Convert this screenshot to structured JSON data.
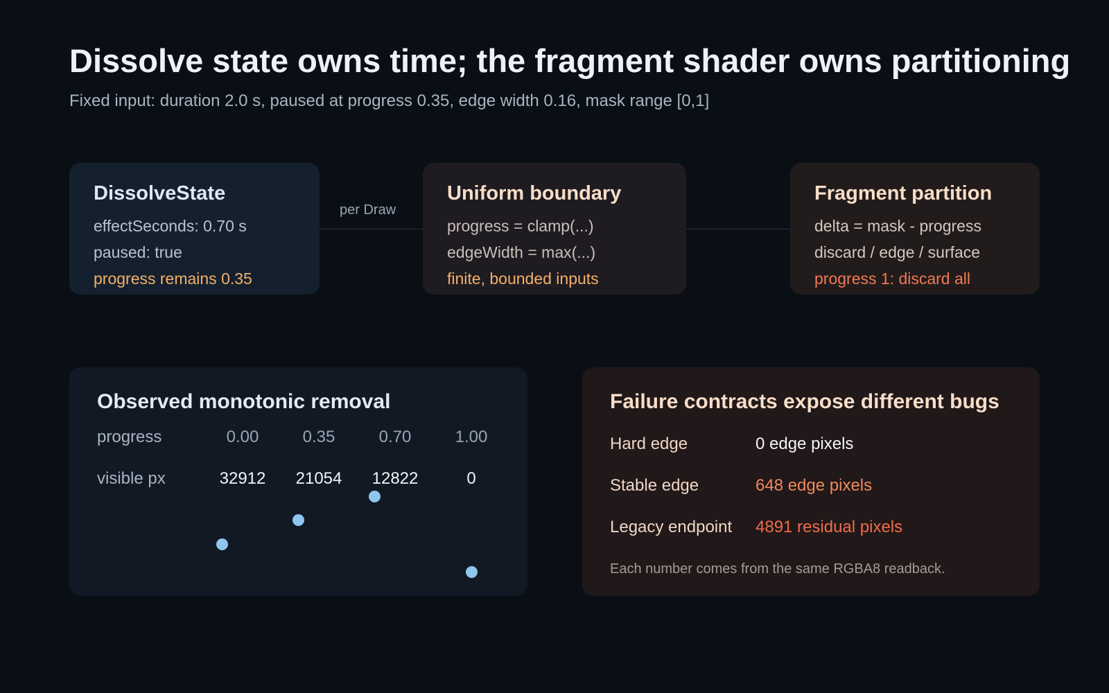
{
  "header": {
    "title": "Dissolve state owns time; the fragment shader owns partitioning",
    "subtitle": "Fixed input: duration 2.0 s, paused at progress 0.35, edge width 0.16, mask range [0,1]"
  },
  "stages": [
    {
      "title": "DissolveState",
      "lines": [
        "effectSeconds: 0.70 s",
        "paused: true",
        "progress remains 0.35"
      ]
    },
    {
      "title": "Uniform boundary",
      "lines": [
        "progress = clamp(...)",
        "edgeWidth = max(...)",
        "finite, bounded inputs"
      ]
    },
    {
      "title": "Fragment partition",
      "lines": [
        "delta = mask - progress",
        "discard / edge / surface",
        "progress 1: discard all"
      ]
    }
  ],
  "connector": {
    "label": "per Draw"
  },
  "observed": {
    "title": "Observed monotonic removal",
    "table": {
      "rows": [
        [
          "progress",
          "0.00",
          "0.35",
          "0.70",
          "1.00"
        ],
        [
          "visible px",
          "32912",
          "21054",
          "12822",
          "0"
        ]
      ]
    }
  },
  "failures": {
    "title": "Failure contracts expose different bugs",
    "rows": [
      [
        "Hard edge",
        "0 edge pixels"
      ],
      [
        "Stable edge",
        "648 edge pixels"
      ],
      [
        "Legacy endpoint",
        "4891 residual pixels"
      ]
    ],
    "note": "Each number comes from the same RGBA8 readback."
  }
}
